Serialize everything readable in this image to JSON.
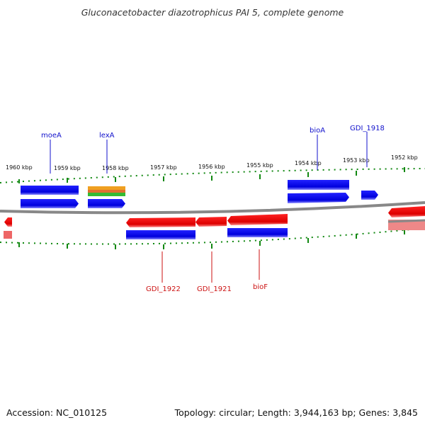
{
  "title": "Gluconacetobacter diazotrophicus PAI 5, complete genome",
  "footer": {
    "accession": "Accession: NC_010125",
    "summary": "Topology: circular; Length: 3,944,163 bp; Genes: 3,845"
  },
  "ticks": {
    "upper": [
      "1960 kbp",
      "1959 kbp",
      "1958 kbp",
      "1957 kbp",
      "1956 kbp",
      "1955 kbp",
      "1954 kbp",
      "1953 kbp",
      "1952 kbp"
    ]
  },
  "gene_labels": {
    "top": [
      "moeA",
      "lexA",
      "bioA",
      "GDI_1918"
    ],
    "bottom": [
      "GDI_1922",
      "GDI_1921",
      "bioF"
    ]
  },
  "colors": {
    "forward": "#0000ee",
    "reverse": "#ee0000",
    "misc": "#f0a020",
    "misc2": "#33bb33",
    "axis": "#888888",
    "tick": "#118811",
    "label_top": "#1111cc",
    "label_bottom": "#cc1111"
  }
}
